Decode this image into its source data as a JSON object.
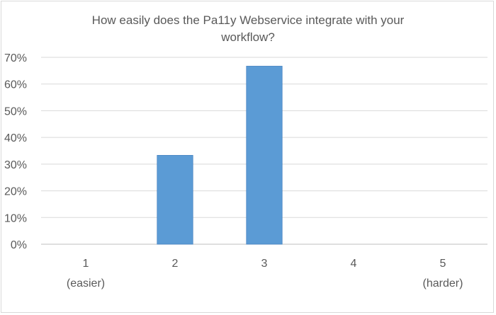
{
  "chart_data": {
    "type": "bar",
    "title_lines": [
      "How easily does the Pa11y Webservice integrate with your",
      "workflow?"
    ],
    "categories": [
      "1",
      "2",
      "3",
      "4",
      "5"
    ],
    "category_sublabels": [
      "(easier)",
      "",
      "",
      "",
      "(harder)"
    ],
    "values": [
      0,
      0.333,
      0.667,
      0,
      0
    ],
    "ylim": [
      0,
      0.7
    ],
    "yticks": [
      0,
      0.1,
      0.2,
      0.3,
      0.4,
      0.5,
      0.6,
      0.7
    ],
    "ytick_labels": [
      "0%",
      "10%",
      "20%",
      "30%",
      "40%",
      "50%",
      "60%",
      "70%"
    ],
    "grid": true,
    "legend": "none",
    "bar_color": "#5b9bd5"
  }
}
